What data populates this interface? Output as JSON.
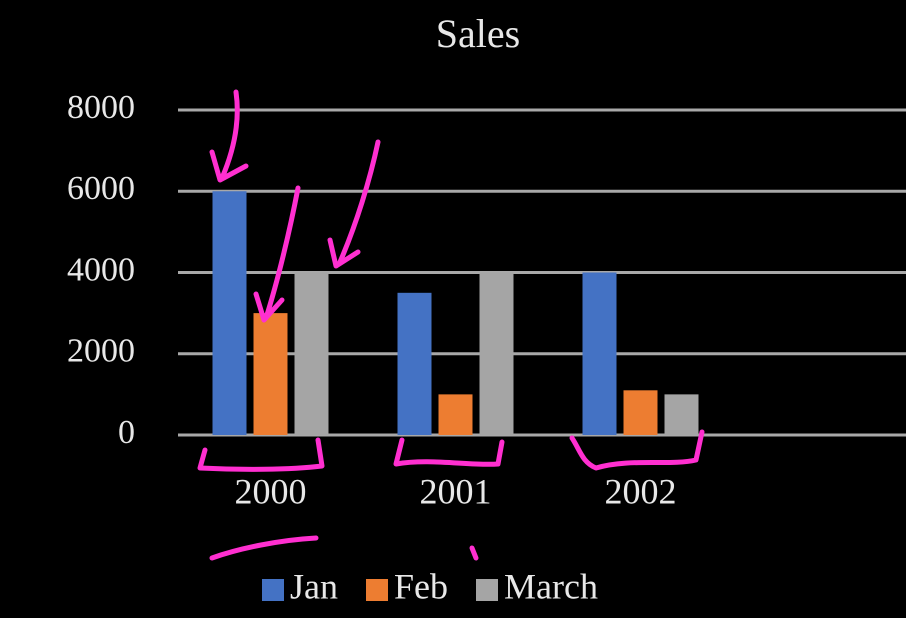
{
  "chart_data": {
    "type": "bar",
    "title": "Sales",
    "categories": [
      "2000",
      "2001",
      "2002"
    ],
    "series": [
      {
        "name": "Jan",
        "color": "#4472c4",
        "values": [
          6000,
          3500,
          4000
        ]
      },
      {
        "name": "Feb",
        "color": "#ed7d31",
        "values": [
          3000,
          1000,
          1100
        ]
      },
      {
        "name": "March",
        "color": "#a5a5a5",
        "values": [
          4000,
          4000,
          1000
        ]
      }
    ],
    "ylim": [
      0,
      8000
    ],
    "yticks": [
      0,
      2000,
      4000,
      6000,
      8000
    ],
    "grid": true,
    "legend": "bottom"
  }
}
